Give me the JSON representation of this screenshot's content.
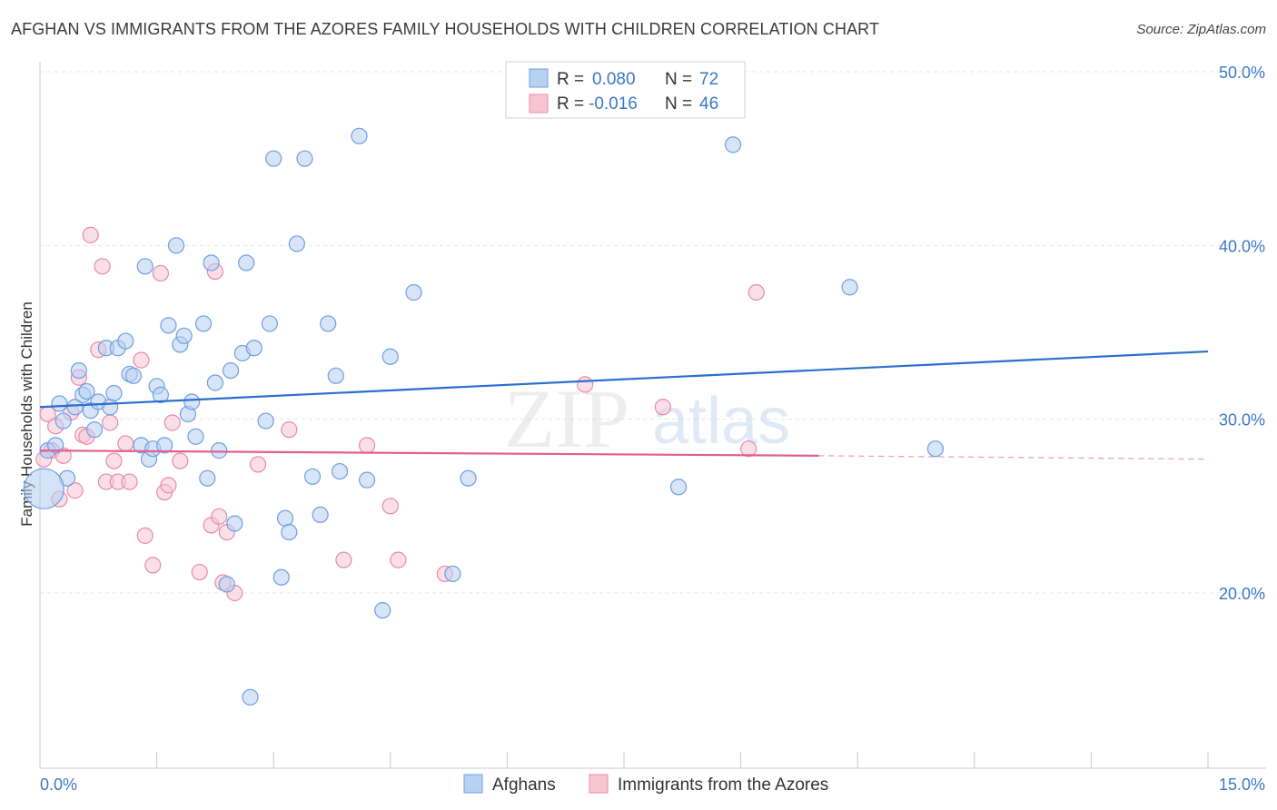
{
  "chart_data": {
    "type": "scatter",
    "title": "AFGHAN VS IMMIGRANTS FROM THE AZORES FAMILY HOUSEHOLDS WITH CHILDREN CORRELATION CHART",
    "source": "Source: ZipAtlas.com",
    "xlabel": "",
    "ylabel": "Family Households with Children",
    "xlim": [
      0,
      15
    ],
    "ylim": [
      11.5,
      51.5
    ],
    "x_tick_labels": {
      "min": "0.0%",
      "max": "15.0%"
    },
    "y_ticks": [
      {
        "value": 20,
        "label": "20.0%"
      },
      {
        "value": 30,
        "label": "30.0%"
      },
      {
        "value": 40,
        "label": "40.0%"
      },
      {
        "value": 50,
        "label": "50.0%"
      }
    ],
    "watermark": {
      "zip": "ZIP",
      "atlas": "atlas"
    },
    "legend": {
      "rows": [
        {
          "r_label": "R =",
          "r_value": "0.080",
          "n_label": "N =",
          "n_value": "72"
        },
        {
          "r_label": "R =",
          "r_value": "-0.016",
          "n_label": "N =",
          "n_value": "46"
        }
      ]
    },
    "series": [
      {
        "name": "Afghans",
        "color": "#6e9fe0",
        "fill": "#b8d0f2",
        "line_color": "#2a6fd1",
        "trend": {
          "x0": 0.0,
          "y0": 30.7,
          "x1": 15.0,
          "y1": 33.9
        },
        "points": [
          [
            0.1,
            28.2
          ],
          [
            0.2,
            28.5
          ],
          [
            0.25,
            30.9
          ],
          [
            0.3,
            29.9
          ],
          [
            0.35,
            26.6
          ],
          [
            0.45,
            30.7
          ],
          [
            0.5,
            32.8
          ],
          [
            0.55,
            31.4
          ],
          [
            0.6,
            31.6
          ],
          [
            0.65,
            30.5
          ],
          [
            0.7,
            29.4
          ],
          [
            0.75,
            31.0
          ],
          [
            0.85,
            34.1
          ],
          [
            0.9,
            30.7
          ],
          [
            0.95,
            31.5
          ],
          [
            1.0,
            34.1
          ],
          [
            1.1,
            34.5
          ],
          [
            1.15,
            32.6
          ],
          [
            1.2,
            32.5
          ],
          [
            1.3,
            28.5
          ],
          [
            1.35,
            38.8
          ],
          [
            1.4,
            27.7
          ],
          [
            1.45,
            28.3
          ],
          [
            1.5,
            31.9
          ],
          [
            1.55,
            31.4
          ],
          [
            1.6,
            28.5
          ],
          [
            1.65,
            35.4
          ],
          [
            1.75,
            40.0
          ],
          [
            1.8,
            34.3
          ],
          [
            1.85,
            34.8
          ],
          [
            1.9,
            30.3
          ],
          [
            1.95,
            31.0
          ],
          [
            2.0,
            29.0
          ],
          [
            2.1,
            35.5
          ],
          [
            2.15,
            26.6
          ],
          [
            2.2,
            39.0
          ],
          [
            2.25,
            32.1
          ],
          [
            2.3,
            28.2
          ],
          [
            2.4,
            20.5
          ],
          [
            2.45,
            32.8
          ],
          [
            2.5,
            24.0
          ],
          [
            2.6,
            33.8
          ],
          [
            2.65,
            39.0
          ],
          [
            2.7,
            14.0
          ],
          [
            2.75,
            34.1
          ],
          [
            2.9,
            29.9
          ],
          [
            2.95,
            35.5
          ],
          [
            3.0,
            45.0
          ],
          [
            3.1,
            20.9
          ],
          [
            3.15,
            24.3
          ],
          [
            3.2,
            23.5
          ],
          [
            3.3,
            40.1
          ],
          [
            3.4,
            45.0
          ],
          [
            3.5,
            26.7
          ],
          [
            3.6,
            24.5
          ],
          [
            3.7,
            35.5
          ],
          [
            3.8,
            32.5
          ],
          [
            3.85,
            27.0
          ],
          [
            4.1,
            46.3
          ],
          [
            4.2,
            26.5
          ],
          [
            4.4,
            19.0
          ],
          [
            4.5,
            33.6
          ],
          [
            4.8,
            37.3
          ],
          [
            5.3,
            21.1
          ],
          [
            5.5,
            26.6
          ],
          [
            8.2,
            26.1
          ],
          [
            8.9,
            45.8
          ],
          [
            10.4,
            37.6
          ],
          [
            11.5,
            28.3
          ]
        ],
        "big_point": [
          0.05,
          26.0
        ]
      },
      {
        "name": "Immigrants from the Azores",
        "color": "#e88aa8",
        "fill": "#f8c5d5",
        "line_color": "#e0608f",
        "trend": {
          "x0": 0.0,
          "y0": 28.2,
          "x1": 10.0,
          "y1": 27.9
        },
        "trend_dash_to": {
          "x": 15.0,
          "y": 27.7
        },
        "points": [
          [
            0.1,
            30.3
          ],
          [
            0.15,
            28.2
          ],
          [
            0.2,
            29.6
          ],
          [
            0.25,
            25.4
          ],
          [
            0.3,
            27.9
          ],
          [
            0.4,
            30.4
          ],
          [
            0.45,
            25.9
          ],
          [
            0.5,
            32.4
          ],
          [
            0.55,
            29.1
          ],
          [
            0.6,
            29.0
          ],
          [
            0.65,
            40.6
          ],
          [
            0.75,
            34.0
          ],
          [
            0.8,
            38.8
          ],
          [
            0.85,
            26.4
          ],
          [
            0.9,
            29.8
          ],
          [
            0.95,
            27.6
          ],
          [
            1.0,
            26.4
          ],
          [
            1.1,
            28.6
          ],
          [
            1.15,
            26.4
          ],
          [
            1.3,
            33.4
          ],
          [
            1.35,
            23.3
          ],
          [
            1.45,
            21.6
          ],
          [
            1.55,
            38.4
          ],
          [
            1.6,
            25.8
          ],
          [
            1.65,
            26.2
          ],
          [
            1.7,
            29.8
          ],
          [
            1.8,
            27.6
          ],
          [
            2.05,
            21.2
          ],
          [
            2.2,
            23.9
          ],
          [
            2.25,
            38.5
          ],
          [
            2.3,
            24.4
          ],
          [
            2.35,
            20.6
          ],
          [
            2.4,
            23.5
          ],
          [
            2.5,
            20.0
          ],
          [
            2.8,
            27.4
          ],
          [
            3.2,
            29.4
          ],
          [
            3.9,
            21.9
          ],
          [
            4.2,
            28.5
          ],
          [
            4.5,
            25.0
          ],
          [
            4.6,
            21.9
          ],
          [
            5.2,
            21.1
          ],
          [
            7.0,
            32.0
          ],
          [
            8.0,
            30.7
          ],
          [
            9.1,
            28.3
          ],
          [
            9.2,
            37.3
          ],
          [
            0.05,
            27.7
          ]
        ]
      }
    ]
  }
}
